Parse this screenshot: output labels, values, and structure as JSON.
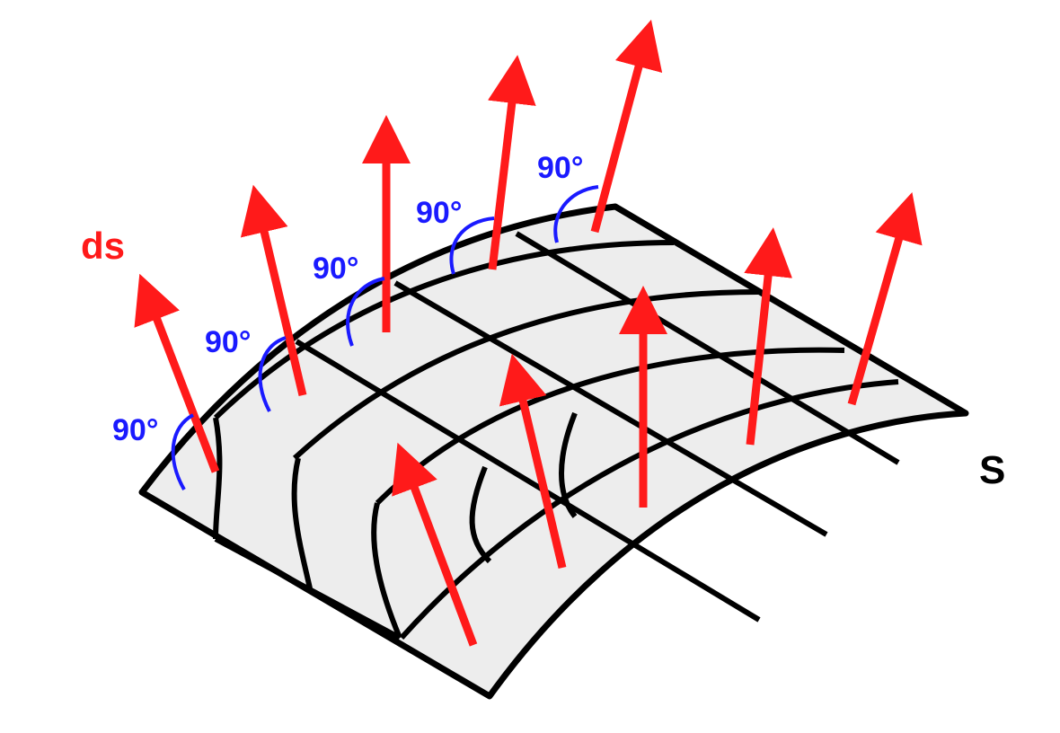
{
  "labels": {
    "vector": "ds",
    "surface": "S",
    "angle": "90°"
  },
  "colors": {
    "surface_fill": "#ededed",
    "grid_line": "#000000",
    "vector": "#ff1a1a",
    "angle_arc": "#1a1aff",
    "background": "#ffffff"
  }
}
